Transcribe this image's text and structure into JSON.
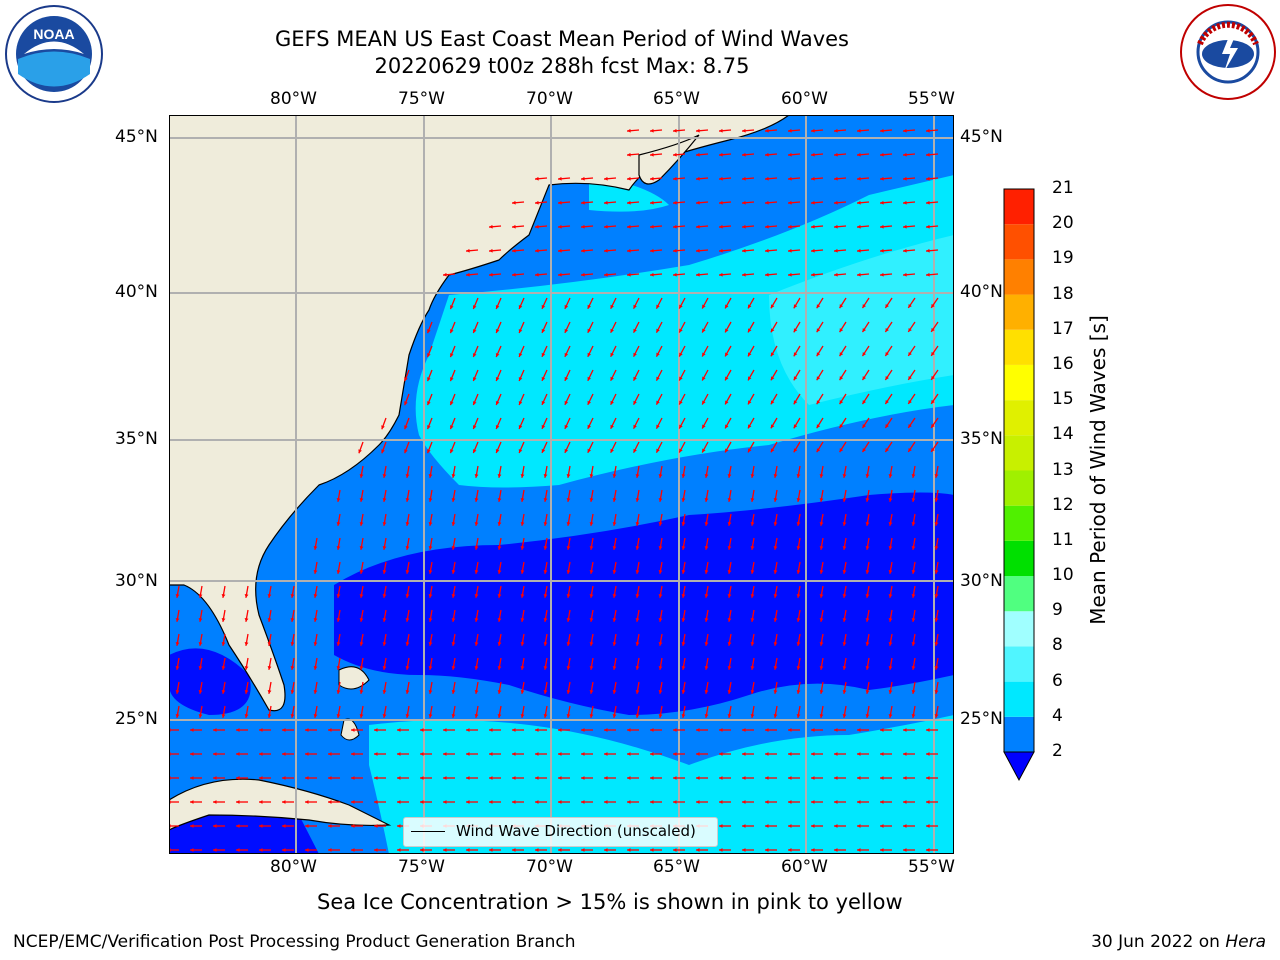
{
  "title": {
    "line1": "GEFS MEAN US East Coast Mean Period of Wind Waves",
    "line2": "20220629 t00z 288h fcst   Max: 8.75"
  },
  "map": {
    "lon_labels": [
      "80°W",
      "75°W",
      "70°W",
      "65°W",
      "60°W",
      "55°W"
    ],
    "lat_labels": [
      "45°N",
      "40°N",
      "35°N",
      "30°N",
      "25°N"
    ],
    "extent": {
      "lon_min": -85,
      "lon_max": -54.3,
      "lat_min": 20.5,
      "lat_max": 45.8
    },
    "colors": {
      "land": "#efecdb",
      "grid": "#b0b0b0",
      "arrow": "#ff0000"
    },
    "period_regions": [
      {
        "band": "2-4",
        "color": "#0080ff"
      },
      {
        "band": "4-6",
        "color": "#00e8ff"
      },
      {
        "band": "6-8",
        "color": "#50f5ff"
      },
      {
        "band": "<2",
        "color": "#0000ff"
      }
    ]
  },
  "colorbar": {
    "label": "Mean Period of Wind Waves [s]",
    "ticks": [
      "2",
      "4",
      "6",
      "8",
      "9",
      "10",
      "11",
      "12",
      "13",
      "14",
      "15",
      "16",
      "17",
      "18",
      "19",
      "20",
      "21"
    ],
    "colors": [
      "#0080ff",
      "#00e8ff",
      "#50f5ff",
      "#a0ffff",
      "#50ff80",
      "#00e000",
      "#50f000",
      "#a0f000",
      "#c8f000",
      "#e0f000",
      "#ffff00",
      "#ffe000",
      "#ffb000",
      "#ff8000",
      "#ff5000",
      "#ff2000",
      "#ff0000"
    ],
    "extend_color": "#0000ff"
  },
  "legend": {
    "label": "Wind Wave Direction (unscaled)"
  },
  "note": "Sea Ice Concentration > 15% is shown in pink to yellow",
  "footer": {
    "left": "NCEP/EMC/Verification Post Processing Product Generation Branch",
    "right_date": "30 Jun 2022 on ",
    "right_machine": "Hera"
  },
  "logos": {
    "left": {
      "name": "noaa-logo",
      "text": "NOAA"
    },
    "right": {
      "name": "nws-logo",
      "text": "NATIONAL WEATHER SERVICE"
    }
  }
}
